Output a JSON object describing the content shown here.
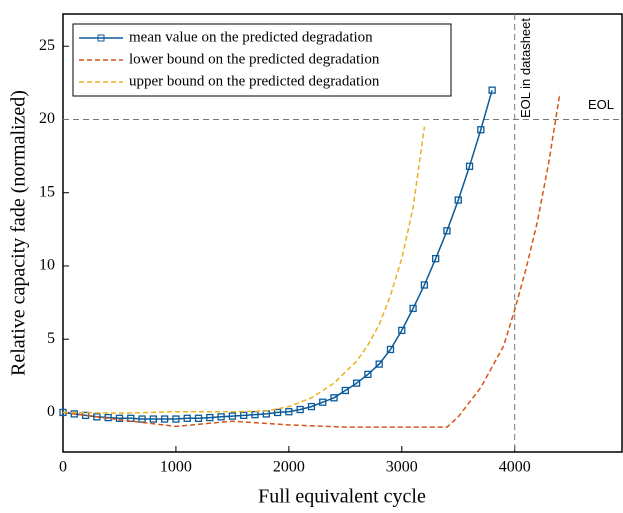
{
  "chart_data": {
    "type": "line",
    "xlabel": "Full equivalent cycle",
    "ylabel": "Relative capacity fade (normalized)",
    "xlim": [
      0,
      4950
    ],
    "ylim": [
      -2.7,
      27.2
    ],
    "xticks": [
      0,
      1000,
      2000,
      3000,
      4000
    ],
    "yticks": [
      0,
      5,
      10,
      15,
      20,
      25
    ],
    "hline": 20,
    "hline_label": "EOL",
    "vline": 4000,
    "vline_label": "EOL in datasheet",
    "legend": "upper left",
    "series": [
      {
        "name": "mean value on the predicted degradation",
        "color": "#0b5a99",
        "style": "solid-marker",
        "x": [
          0,
          100,
          200,
          300,
          400,
          500,
          600,
          700,
          800,
          900,
          1000,
          1100,
          1200,
          1300,
          1400,
          1500,
          1600,
          1700,
          1800,
          1900,
          2000,
          2100,
          2200,
          2300,
          2400,
          2500,
          2600,
          2700,
          2800,
          2900,
          3000,
          3100,
          3200,
          3300,
          3400,
          3500,
          3600,
          3700,
          3800
        ],
        "values": [
          0,
          -0.1,
          -0.2,
          -0.3,
          -0.35,
          -0.4,
          -0.4,
          -0.45,
          -0.45,
          -0.45,
          -0.45,
          -0.4,
          -0.4,
          -0.35,
          -0.3,
          -0.25,
          -0.2,
          -0.15,
          -0.1,
          0,
          0.05,
          0.2,
          0.4,
          0.7,
          1.0,
          1.5,
          2.0,
          2.6,
          3.3,
          4.3,
          5.6,
          7.1,
          8.7,
          10.5,
          12.4,
          14.5,
          16.8,
          19.3,
          22.0
        ]
      },
      {
        "name": "lower bound on the predicted degradation",
        "color": "#d95319",
        "style": "dashed",
        "x": [
          0,
          500,
          1000,
          1500,
          2000,
          2500,
          3000,
          3400,
          3500,
          3700,
          3900,
          4000,
          4100,
          4200,
          4300,
          4400
        ],
        "values": [
          0,
          -0.5,
          -0.95,
          -0.6,
          -0.85,
          -1.0,
          -1.0,
          -1.0,
          -0.3,
          1.7,
          4.5,
          7,
          9.8,
          13,
          17,
          21.8
        ]
      },
      {
        "name": "upper bound on the predicted degradation",
        "color": "#edb120",
        "style": "dashed",
        "x": [
          0,
          500,
          1000,
          1500,
          1800,
          2000,
          2200,
          2400,
          2600,
          2700,
          2800,
          2900,
          3000,
          3100,
          3200
        ],
        "values": [
          0,
          -0.05,
          0.05,
          0.05,
          0.1,
          0.4,
          1.0,
          2.0,
          3.5,
          4.6,
          6.0,
          8.0,
          10.5,
          14.0,
          19.5
        ]
      }
    ]
  }
}
